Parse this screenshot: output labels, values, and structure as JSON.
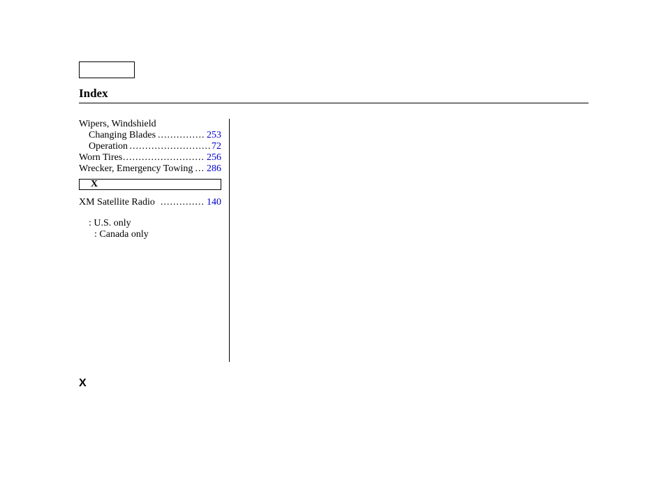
{
  "title": "Index",
  "page_roman": "X",
  "link_color": "#0000cc",
  "text_color": "#000000",
  "entries": {
    "wipers": {
      "heading": "Wipers, Windshield",
      "sub": [
        {
          "label": "Changing Blades",
          "page": "253"
        },
        {
          "label": "Operation",
          "page": "72"
        }
      ]
    },
    "worn_tires": {
      "label": "Worn Tires",
      "page": "256"
    },
    "wrecker": {
      "label": "Wrecker, Emergency Towing",
      "page": "286"
    }
  },
  "section_letter": "X",
  "section_entries": {
    "xm": {
      "label": "XM Satellite Radio",
      "page": "140"
    }
  },
  "footnotes": {
    "us": ": U.S. only",
    "canada": ": Canada only"
  }
}
